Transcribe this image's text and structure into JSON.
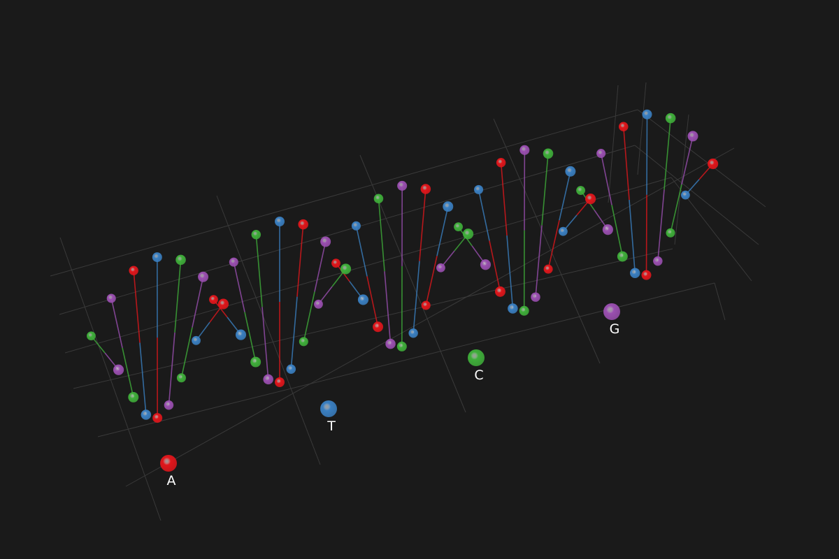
{
  "legend": [
    {
      "label": "A",
      "color": "#e0161b"
    },
    {
      "label": "T",
      "color": "#3a7fc1"
    },
    {
      "label": "C",
      "color": "#3fae3a"
    },
    {
      "label": "G",
      "color": "#9a4fb0"
    }
  ]
}
